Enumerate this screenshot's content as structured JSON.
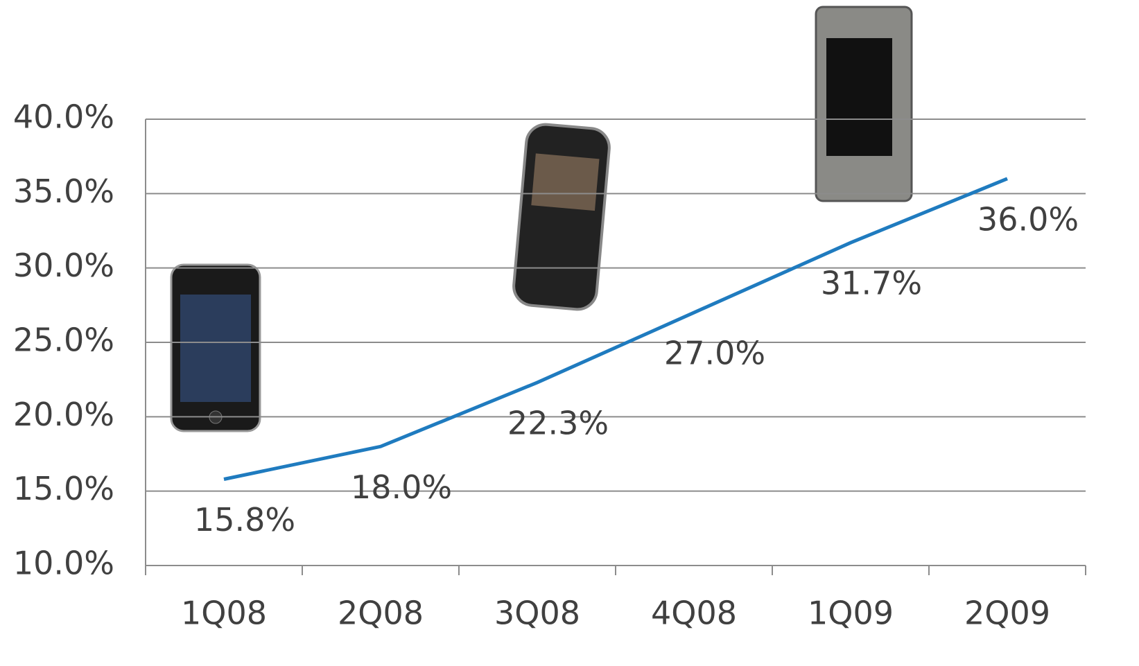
{
  "chart_data": {
    "type": "line",
    "categories": [
      "1Q08",
      "2Q08",
      "3Q08",
      "4Q08",
      "1Q09",
      "2Q09"
    ],
    "series": [
      {
        "color": "#1f7bbf",
        "values": [
          15.8,
          18.0,
          22.3,
          27.0,
          31.7,
          36.0
        ],
        "value_labels": [
          "15.8%",
          "18.0%",
          "22.3%",
          "27.0%",
          "31.7%",
          "36.0%"
        ]
      }
    ],
    "ylim": [
      10,
      40
    ],
    "yticks": [
      {
        "value": 10,
        "label": "10.0%"
      },
      {
        "value": 15,
        "label": "15.0%"
      },
      {
        "value": 20,
        "label": "20.0%"
      },
      {
        "value": 25,
        "label": "25.0%"
      },
      {
        "value": 30,
        "label": "30.0%"
      },
      {
        "value": 35,
        "label": "35.0%"
      },
      {
        "value": 40,
        "label": "40.0%"
      }
    ],
    "grid": true
  }
}
